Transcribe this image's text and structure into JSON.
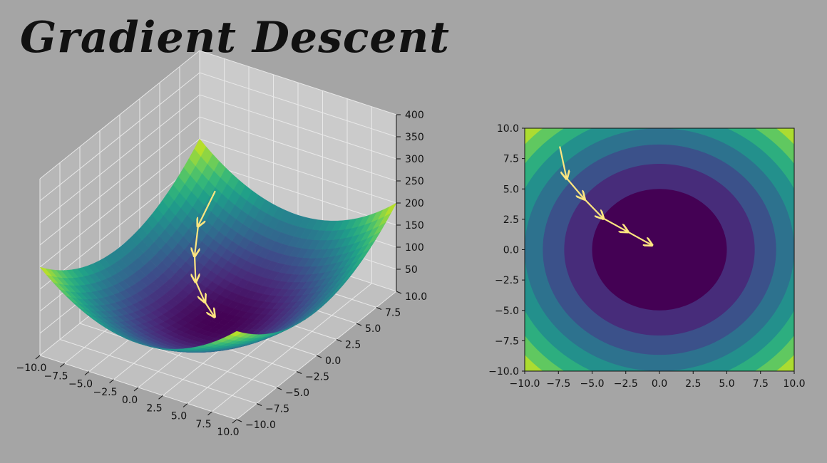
{
  "title": "Gradient Descent",
  "colors": {
    "background": "#a5a5a5",
    "arrow": "#ffe680",
    "viridis": [
      "#440154",
      "#482878",
      "#3e4989",
      "#31688e",
      "#26828e",
      "#1f9e89",
      "#35b779",
      "#6ece58",
      "#b5de2b",
      "#fde725"
    ]
  },
  "chart_data": [
    {
      "type": "surface3d",
      "function": "x^2 + y^2",
      "colormap": "viridis",
      "x_ticks": [
        "−10.0",
        "−7.5",
        "−5.0",
        "−2.5",
        "0.0",
        "2.5",
        "5.0",
        "7.5",
        "10.0"
      ],
      "y_ticks": [
        "−10.0",
        "−7.5",
        "−5.0",
        "−2.5",
        "0.0",
        "2.5",
        "5.0",
        "7.5",
        "10.0"
      ],
      "z_ticks": [
        "50",
        "100",
        "150",
        "200",
        "250",
        "300",
        "350",
        "400"
      ],
      "xlim": [
        -10,
        10
      ],
      "ylim": [
        -10,
        10
      ],
      "zlim": [
        0,
        400
      ],
      "grid": true,
      "path": [
        {
          "x": -7.2,
          "y": 8.5,
          "z": 124
        },
        {
          "x": -6.9,
          "y": 6.0,
          "z": 84
        },
        {
          "x": -5.8,
          "y": 4.2,
          "z": 51
        },
        {
          "x": -4.4,
          "y": 2.6,
          "z": 26
        },
        {
          "x": -2.6,
          "y": 1.5,
          "z": 9
        },
        {
          "x": -0.9,
          "y": 0.6,
          "z": 1
        }
      ]
    },
    {
      "type": "contourf",
      "function": "x^2 + y^2",
      "colormap": "viridis",
      "levels": [
        0,
        25,
        50,
        75,
        100,
        125,
        150,
        175,
        200
      ],
      "x_ticks": [
        "−10.0",
        "−7.5",
        "−5.0",
        "−2.5",
        "0.0",
        "2.5",
        "5.0",
        "7.5",
        "10.0"
      ],
      "y_ticks": [
        "10.0",
        "7.5",
        "5.0",
        "2.5",
        "0.0",
        "−2.5",
        "−5.0",
        "−7.5",
        "−10.0"
      ],
      "xlim": [
        -10,
        10
      ],
      "ylim": [
        -10,
        10
      ],
      "path": [
        {
          "x": -7.4,
          "y": 8.5
        },
        {
          "x": -6.9,
          "y": 5.9
        },
        {
          "x": -5.6,
          "y": 4.2
        },
        {
          "x": -4.2,
          "y": 2.6
        },
        {
          "x": -2.4,
          "y": 1.5
        },
        {
          "x": -0.6,
          "y": 0.4
        }
      ]
    }
  ]
}
